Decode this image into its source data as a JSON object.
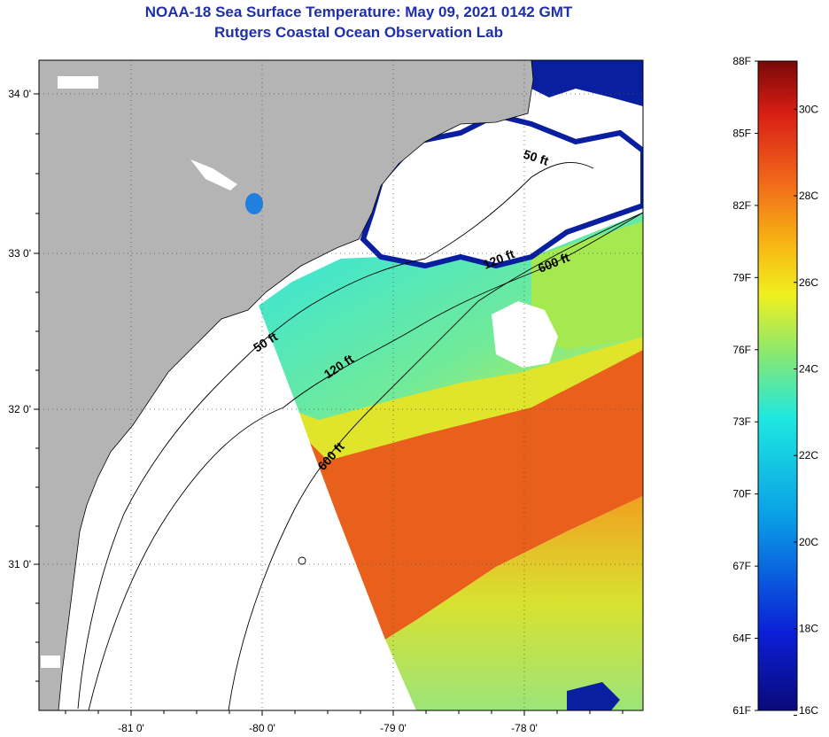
{
  "header": {
    "title": "NOAA-18 Sea Surface Temperature:  May 09, 2021 0142 GMT",
    "subtitle": "Rutgers Coastal Ocean Observation Lab"
  },
  "map": {
    "lat_labels": [
      "34 0'",
      "33 0'",
      "32 0'",
      "31 0'"
    ],
    "lon_labels": [
      "-81 0'",
      "-80 0'",
      "-79 0'",
      "-78 0'"
    ],
    "contour_labels": [
      "50 ft",
      "50 ft",
      "120 ft",
      "120 ft",
      "600 ft",
      "600 ft"
    ],
    "colors": {
      "land": "#b4b4b4",
      "cloud_or_nodata": "#ffffff",
      "cloud_edge": "#0a1ea0",
      "warm_core": "#e8561a",
      "shelf_water": "#3ee8c8"
    }
  },
  "colorbar": {
    "f_labels": [
      "88F",
      "85F",
      "82F",
      "79F",
      "76F",
      "73F",
      "70F",
      "67F",
      "64F",
      "61F"
    ],
    "c_labels": [
      "30C",
      "28C",
      "26C",
      "24C",
      "22C",
      "20C",
      "18C",
      "16C"
    ],
    "range_f": [
      61,
      88
    ],
    "range_c": [
      16,
      31
    ]
  }
}
